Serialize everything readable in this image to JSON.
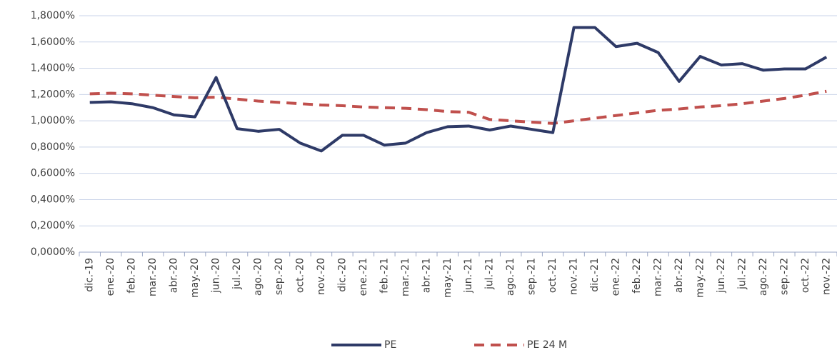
{
  "chart_data": {
    "type": "line",
    "categories": [
      "dic.-19",
      "ene.-20",
      "feb.-20",
      "mar.-20",
      "abr.-20",
      "may.-20",
      "jun.-20",
      "jul.-20",
      "ago.-20",
      "sep.-20",
      "oct.-20",
      "nov.-20",
      "dic.-20",
      "ene.-21",
      "feb.-21",
      "mar.-21",
      "abr.-21",
      "may.-21",
      "jun.-21",
      "jul.-21",
      "ago.-21",
      "sep.-21",
      "oct.-21",
      "nov.-21",
      "dic.-21",
      "ene.-22",
      "feb.-22",
      "mar.-22",
      "abr.-22",
      "may.-22",
      "jun.-22",
      "jul.-22",
      "ago.-22",
      "sep.-22",
      "oct.-22",
      "nov.-22"
    ],
    "series": [
      {
        "name": "PE",
        "color": "#2e3a67",
        "dash": false,
        "values": [
          1.14,
          1.145,
          1.13,
          1.1,
          1.045,
          1.03,
          1.33,
          0.94,
          0.92,
          0.935,
          0.83,
          0.77,
          0.89,
          0.89,
          0.815,
          0.83,
          0.91,
          0.955,
          0.96,
          0.93,
          0.96,
          0.935,
          0.91,
          1.71,
          1.71,
          1.565,
          1.59,
          1.52,
          1.3,
          1.49,
          1.425,
          1.435,
          1.385,
          1.395,
          1.395,
          1.485
        ]
      },
      {
        "name": "PE 24 M",
        "color": "#c0504d",
        "dash": true,
        "values": [
          1.205,
          1.21,
          1.205,
          1.195,
          1.185,
          1.175,
          1.18,
          1.165,
          1.15,
          1.14,
          1.13,
          1.12,
          1.115,
          1.105,
          1.1,
          1.095,
          1.085,
          1.07,
          1.065,
          1.01,
          1.0,
          0.99,
          0.98,
          1.0,
          1.02,
          1.04,
          1.06,
          1.08,
          1.09,
          1.105,
          1.115,
          1.13,
          1.15,
          1.17,
          1.195,
          1.225
        ]
      }
    ],
    "ylim": [
      0,
      1.8
    ],
    "yticks": [
      {
        "value": 0,
        "label": "0,0000%"
      },
      {
        "value": 0.2,
        "label": "0,2000%"
      },
      {
        "value": 0.4,
        "label": "0,4000%"
      },
      {
        "value": 0.6,
        "label": "0,6000%"
      },
      {
        "value": 0.8,
        "label": "0,8000%"
      },
      {
        "value": 1.0,
        "label": "1,0000%"
      },
      {
        "value": 1.2,
        "label": "1,2000%"
      },
      {
        "value": 1.4,
        "label": "1,4000%"
      },
      {
        "value": 1.6,
        "label": "1,6000%"
      },
      {
        "value": 1.8,
        "label": "1,8000%"
      }
    ],
    "grid": true
  }
}
